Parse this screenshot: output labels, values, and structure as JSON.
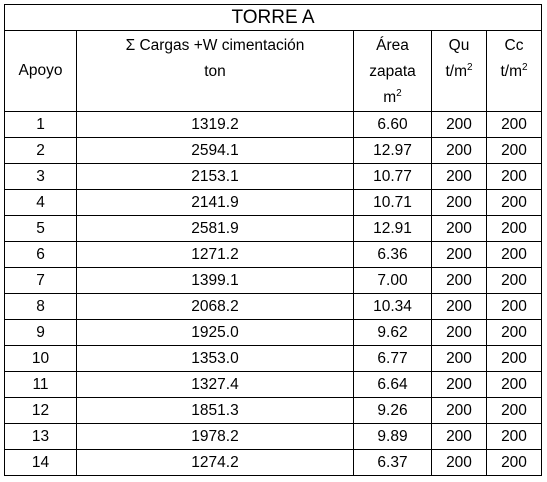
{
  "table": {
    "title": "TORRE A",
    "headers": {
      "apoyo": "Apoyo",
      "cargas_line1": "Σ Cargas +W cimentación",
      "cargas_line2": "ton",
      "area_line1": "Área",
      "area_line2": "zapata",
      "area_unit": "m",
      "area_sup": "2",
      "qu_line1": "Qu",
      "qu_unit": "t/m",
      "qu_sup": "2",
      "cc_line1": "Cc",
      "cc_unit": "t/m",
      "cc_sup": "2"
    },
    "rows": [
      {
        "apoyo": "1",
        "cargas": "1319.2",
        "area": "6.60",
        "qu": "200",
        "cc": "200"
      },
      {
        "apoyo": "2",
        "cargas": "2594.1",
        "area": "12.97",
        "qu": "200",
        "cc": "200"
      },
      {
        "apoyo": "3",
        "cargas": "2153.1",
        "area": "10.77",
        "qu": "200",
        "cc": "200"
      },
      {
        "apoyo": "4",
        "cargas": "2141.9",
        "area": "10.71",
        "qu": "200",
        "cc": "200"
      },
      {
        "apoyo": "5",
        "cargas": "2581.9",
        "area": "12.91",
        "qu": "200",
        "cc": "200"
      },
      {
        "apoyo": "6",
        "cargas": "1271.2",
        "area": "6.36",
        "qu": "200",
        "cc": "200"
      },
      {
        "apoyo": "7",
        "cargas": "1399.1",
        "area": "7.00",
        "qu": "200",
        "cc": "200"
      },
      {
        "apoyo": "8",
        "cargas": "2068.2",
        "area": "10.34",
        "qu": "200",
        "cc": "200"
      },
      {
        "apoyo": "9",
        "cargas": "1925.0",
        "area": "9.62",
        "qu": "200",
        "cc": "200"
      },
      {
        "apoyo": "10",
        "cargas": "1353.0",
        "area": "6.77",
        "qu": "200",
        "cc": "200"
      },
      {
        "apoyo": "11",
        "cargas": "1327.4",
        "area": "6.64",
        "qu": "200",
        "cc": "200"
      },
      {
        "apoyo": "12",
        "cargas": "1851.3",
        "area": "9.26",
        "qu": "200",
        "cc": "200"
      },
      {
        "apoyo": "13",
        "cargas": "1978.2",
        "area": "9.89",
        "qu": "200",
        "cc": "200"
      },
      {
        "apoyo": "14",
        "cargas": "1274.2",
        "area": "6.37",
        "qu": "200",
        "cc": "200"
      }
    ]
  }
}
